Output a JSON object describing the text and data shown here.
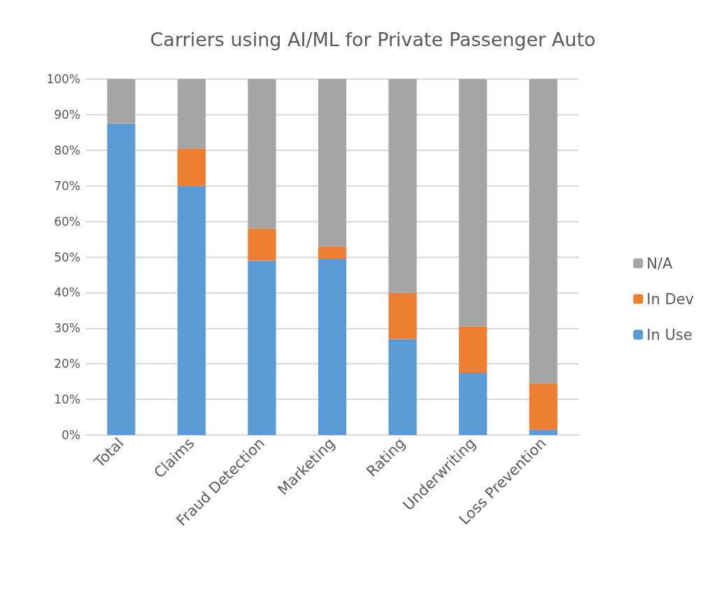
{
  "chart_data": {
    "type": "bar",
    "stacked": true,
    "title": "Carriers using AI/ML for Private Passenger Auto",
    "categories": [
      "Total",
      "Claims",
      "Fraud Detection",
      "Marketing",
      "Rating",
      "Underwriting",
      "Loss Prevention"
    ],
    "series": [
      {
        "name": "In Use",
        "color": "#5b9bd5",
        "values": [
          87.5,
          70,
          49,
          49.5,
          27,
          17.5,
          1.5
        ]
      },
      {
        "name": "In Dev",
        "color": "#ed7d31",
        "values": [
          0,
          10.5,
          9,
          3.5,
          13,
          13,
          13
        ]
      },
      {
        "name": "N/A",
        "color": "#a5a5a5",
        "values": [
          12.5,
          19.5,
          42,
          47,
          60,
          69.5,
          85.5
        ]
      }
    ],
    "ylim": [
      0,
      100
    ],
    "yticks": [
      {
        "value": 0,
        "label": "0%"
      },
      {
        "value": 10,
        "label": "10%"
      },
      {
        "value": 20,
        "label": "20%"
      },
      {
        "value": 30,
        "label": "30%"
      },
      {
        "value": 40,
        "label": "40%"
      },
      {
        "value": 50,
        "label": "50%"
      },
      {
        "value": 60,
        "label": "60%"
      },
      {
        "value": 70,
        "label": "70%"
      },
      {
        "value": 80,
        "label": "80%"
      },
      {
        "value": 90,
        "label": "90%"
      },
      {
        "value": 100,
        "label": "100%"
      }
    ],
    "grid": "y",
    "legend": "right"
  }
}
